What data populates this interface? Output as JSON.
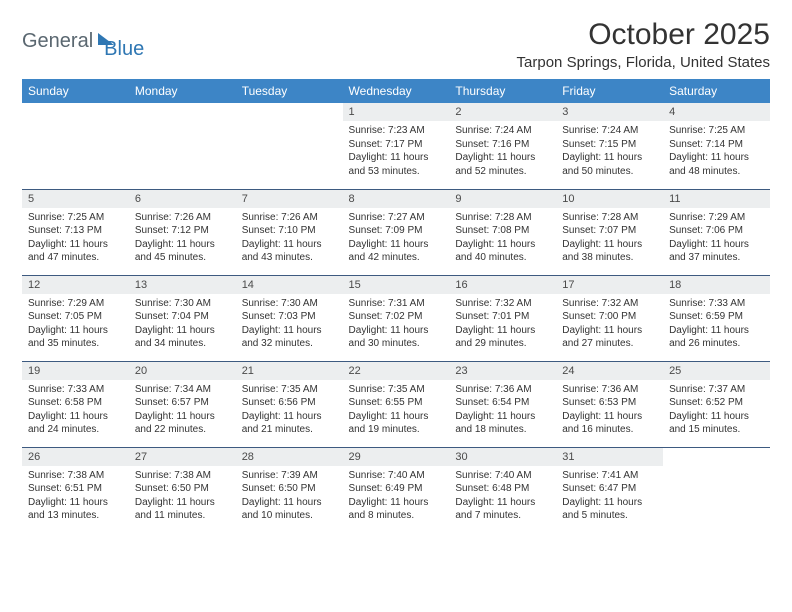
{
  "logo": {
    "word1": "General",
    "word2": "Blue"
  },
  "title": "October 2025",
  "location": "Tarpon Springs, Florida, United States",
  "colors": {
    "header_bg": "#3d85c6",
    "header_text": "#ffffff",
    "daynum_bg": "#eceeef",
    "row_border": "#3d5a80",
    "logo_blue": "#2f77b3",
    "logo_gray": "#5a6770",
    "body_text": "#333333"
  },
  "typography": {
    "title_fontsize": 30,
    "location_fontsize": 15,
    "weekday_fontsize": 12,
    "daynum_fontsize": 11,
    "cell_fontsize": 10
  },
  "weekdays": [
    "Sunday",
    "Monday",
    "Tuesday",
    "Wednesday",
    "Thursday",
    "Friday",
    "Saturday"
  ],
  "weeks": [
    [
      null,
      null,
      null,
      {
        "n": "1",
        "sr": "Sunrise: 7:23 AM",
        "ss": "Sunset: 7:17 PM",
        "dl": "Daylight: 11 hours and 53 minutes."
      },
      {
        "n": "2",
        "sr": "Sunrise: 7:24 AM",
        "ss": "Sunset: 7:16 PM",
        "dl": "Daylight: 11 hours and 52 minutes."
      },
      {
        "n": "3",
        "sr": "Sunrise: 7:24 AM",
        "ss": "Sunset: 7:15 PM",
        "dl": "Daylight: 11 hours and 50 minutes."
      },
      {
        "n": "4",
        "sr": "Sunrise: 7:25 AM",
        "ss": "Sunset: 7:14 PM",
        "dl": "Daylight: 11 hours and 48 minutes."
      }
    ],
    [
      {
        "n": "5",
        "sr": "Sunrise: 7:25 AM",
        "ss": "Sunset: 7:13 PM",
        "dl": "Daylight: 11 hours and 47 minutes."
      },
      {
        "n": "6",
        "sr": "Sunrise: 7:26 AM",
        "ss": "Sunset: 7:12 PM",
        "dl": "Daylight: 11 hours and 45 minutes."
      },
      {
        "n": "7",
        "sr": "Sunrise: 7:26 AM",
        "ss": "Sunset: 7:10 PM",
        "dl": "Daylight: 11 hours and 43 minutes."
      },
      {
        "n": "8",
        "sr": "Sunrise: 7:27 AM",
        "ss": "Sunset: 7:09 PM",
        "dl": "Daylight: 11 hours and 42 minutes."
      },
      {
        "n": "9",
        "sr": "Sunrise: 7:28 AM",
        "ss": "Sunset: 7:08 PM",
        "dl": "Daylight: 11 hours and 40 minutes."
      },
      {
        "n": "10",
        "sr": "Sunrise: 7:28 AM",
        "ss": "Sunset: 7:07 PM",
        "dl": "Daylight: 11 hours and 38 minutes."
      },
      {
        "n": "11",
        "sr": "Sunrise: 7:29 AM",
        "ss": "Sunset: 7:06 PM",
        "dl": "Daylight: 11 hours and 37 minutes."
      }
    ],
    [
      {
        "n": "12",
        "sr": "Sunrise: 7:29 AM",
        "ss": "Sunset: 7:05 PM",
        "dl": "Daylight: 11 hours and 35 minutes."
      },
      {
        "n": "13",
        "sr": "Sunrise: 7:30 AM",
        "ss": "Sunset: 7:04 PM",
        "dl": "Daylight: 11 hours and 34 minutes."
      },
      {
        "n": "14",
        "sr": "Sunrise: 7:30 AM",
        "ss": "Sunset: 7:03 PM",
        "dl": "Daylight: 11 hours and 32 minutes."
      },
      {
        "n": "15",
        "sr": "Sunrise: 7:31 AM",
        "ss": "Sunset: 7:02 PM",
        "dl": "Daylight: 11 hours and 30 minutes."
      },
      {
        "n": "16",
        "sr": "Sunrise: 7:32 AM",
        "ss": "Sunset: 7:01 PM",
        "dl": "Daylight: 11 hours and 29 minutes."
      },
      {
        "n": "17",
        "sr": "Sunrise: 7:32 AM",
        "ss": "Sunset: 7:00 PM",
        "dl": "Daylight: 11 hours and 27 minutes."
      },
      {
        "n": "18",
        "sr": "Sunrise: 7:33 AM",
        "ss": "Sunset: 6:59 PM",
        "dl": "Daylight: 11 hours and 26 minutes."
      }
    ],
    [
      {
        "n": "19",
        "sr": "Sunrise: 7:33 AM",
        "ss": "Sunset: 6:58 PM",
        "dl": "Daylight: 11 hours and 24 minutes."
      },
      {
        "n": "20",
        "sr": "Sunrise: 7:34 AM",
        "ss": "Sunset: 6:57 PM",
        "dl": "Daylight: 11 hours and 22 minutes."
      },
      {
        "n": "21",
        "sr": "Sunrise: 7:35 AM",
        "ss": "Sunset: 6:56 PM",
        "dl": "Daylight: 11 hours and 21 minutes."
      },
      {
        "n": "22",
        "sr": "Sunrise: 7:35 AM",
        "ss": "Sunset: 6:55 PM",
        "dl": "Daylight: 11 hours and 19 minutes."
      },
      {
        "n": "23",
        "sr": "Sunrise: 7:36 AM",
        "ss": "Sunset: 6:54 PM",
        "dl": "Daylight: 11 hours and 18 minutes."
      },
      {
        "n": "24",
        "sr": "Sunrise: 7:36 AM",
        "ss": "Sunset: 6:53 PM",
        "dl": "Daylight: 11 hours and 16 minutes."
      },
      {
        "n": "25",
        "sr": "Sunrise: 7:37 AM",
        "ss": "Sunset: 6:52 PM",
        "dl": "Daylight: 11 hours and 15 minutes."
      }
    ],
    [
      {
        "n": "26",
        "sr": "Sunrise: 7:38 AM",
        "ss": "Sunset: 6:51 PM",
        "dl": "Daylight: 11 hours and 13 minutes."
      },
      {
        "n": "27",
        "sr": "Sunrise: 7:38 AM",
        "ss": "Sunset: 6:50 PM",
        "dl": "Daylight: 11 hours and 11 minutes."
      },
      {
        "n": "28",
        "sr": "Sunrise: 7:39 AM",
        "ss": "Sunset: 6:50 PM",
        "dl": "Daylight: 11 hours and 10 minutes."
      },
      {
        "n": "29",
        "sr": "Sunrise: 7:40 AM",
        "ss": "Sunset: 6:49 PM",
        "dl": "Daylight: 11 hours and 8 minutes."
      },
      {
        "n": "30",
        "sr": "Sunrise: 7:40 AM",
        "ss": "Sunset: 6:48 PM",
        "dl": "Daylight: 11 hours and 7 minutes."
      },
      {
        "n": "31",
        "sr": "Sunrise: 7:41 AM",
        "ss": "Sunset: 6:47 PM",
        "dl": "Daylight: 11 hours and 5 minutes."
      },
      null
    ]
  ]
}
